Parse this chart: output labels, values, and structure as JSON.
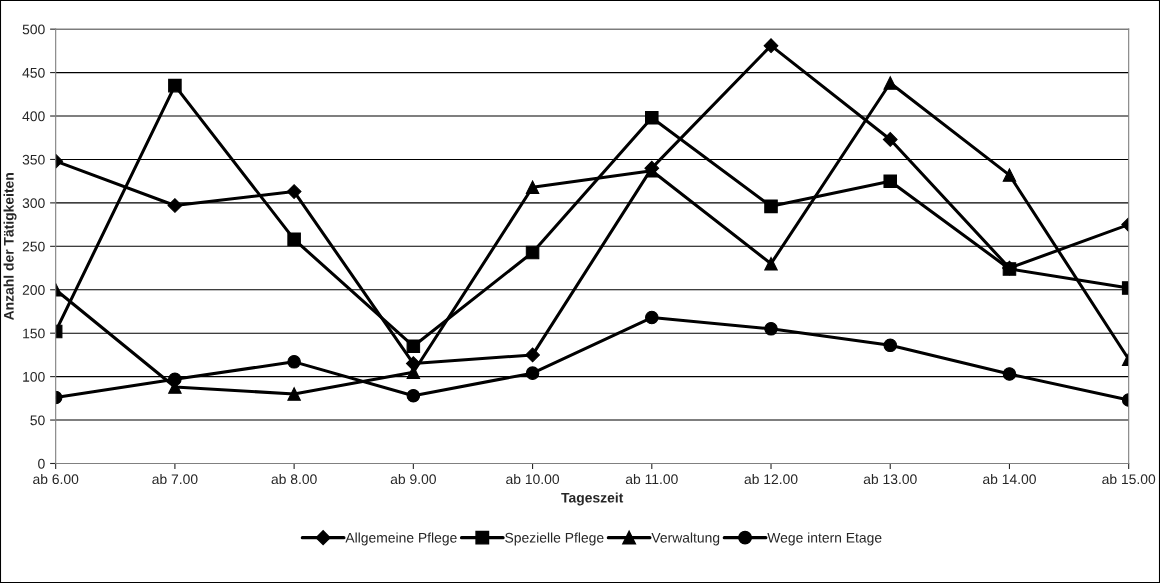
{
  "chart_data": {
    "type": "line",
    "xlabel": "Tageszeit",
    "ylabel": "Anzahl der Tätigkeiten",
    "categories": [
      "ab 6.00",
      "ab 7.00",
      "ab 8.00",
      "ab 9.00",
      "ab 10.00",
      "ab 11.00",
      "ab 12.00",
      "ab 13.00",
      "ab 14.00",
      "ab 15.00"
    ],
    "series": [
      {
        "name": "Allgemeine Pflege",
        "color": "#000000",
        "marker": "diamond",
        "values": [
          348,
          297,
          313,
          115,
          125,
          340,
          481,
          373,
          225,
          275
        ]
      },
      {
        "name": "Spezielle Pflege",
        "color": "#000000",
        "marker": "square",
        "values": [
          152,
          435,
          258,
          135,
          243,
          398,
          296,
          325,
          224,
          202
        ]
      },
      {
        "name": "Verwaltung",
        "color": "#000000",
        "marker": "triangle",
        "values": [
          200,
          88,
          80,
          105,
          318,
          337,
          230,
          438,
          332,
          120
        ]
      },
      {
        "name": "Wege intern Etage",
        "color": "#000000",
        "marker": "circle",
        "values": [
          76,
          97,
          117,
          78,
          104,
          168,
          155,
          136,
          103,
          73
        ]
      }
    ],
    "ylim": [
      0,
      500
    ],
    "yticks": [
      0,
      50,
      100,
      150,
      200,
      250,
      300,
      350,
      400,
      450,
      500
    ],
    "grid": "y",
    "legend": "bottom",
    "line_style": "solid"
  }
}
